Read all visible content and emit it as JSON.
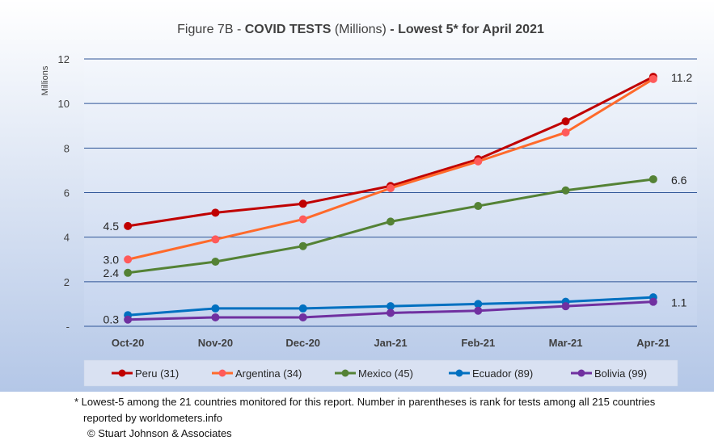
{
  "chart_data": {
    "type": "line",
    "title": {
      "prefix": "Figure 7B - ",
      "bold1": "COVID TESTS",
      "middle": " (Millions) ",
      "bold2": "- Lowest 5* for April 2021"
    },
    "ylabel": "Millions",
    "xlabel": "",
    "categories": [
      "Oct-20",
      "Nov-20",
      "Dec-20",
      "Jan-21",
      "Feb-21",
      "Mar-21",
      "Apr-21"
    ],
    "ylim": [
      0,
      12
    ],
    "yticks": [
      {
        "value": 0,
        "label": "-"
      },
      {
        "value": 2,
        "label": "2"
      },
      {
        "value": 4,
        "label": "4"
      },
      {
        "value": 6,
        "label": "6"
      },
      {
        "value": 8,
        "label": "8"
      },
      {
        "value": 10,
        "label": "10"
      },
      {
        "value": 12,
        "label": "12"
      }
    ],
    "grid": true,
    "legend_position": "bottom",
    "series": [
      {
        "name": "Peru (31)",
        "color": "#C00000",
        "marker": "#C00000",
        "values": [
          4.5,
          5.1,
          5.5,
          6.3,
          7.5,
          9.2,
          11.2
        ]
      },
      {
        "name": "Argentina (34)",
        "color": "#FF6A2B",
        "marker": "#FF5A5A",
        "values": [
          3.0,
          3.9,
          4.8,
          6.2,
          7.4,
          8.7,
          11.1
        ]
      },
      {
        "name": "Mexico (45)",
        "color": "#548235",
        "marker": "#548235",
        "values": [
          2.4,
          2.9,
          3.6,
          4.7,
          5.4,
          6.1,
          6.6
        ]
      },
      {
        "name": "Ecuador (89)",
        "color": "#0070C0",
        "marker": "#0070C0",
        "values": [
          0.5,
          0.8,
          0.8,
          0.9,
          1.0,
          1.1,
          1.3
        ]
      },
      {
        "name": "Bolivia (99)",
        "color": "#7030A0",
        "marker": "#7030A0",
        "values": [
          0.3,
          0.4,
          0.4,
          0.6,
          0.7,
          0.9,
          1.1
        ]
      }
    ],
    "start_labels": [
      {
        "series": 0,
        "text": "4.5"
      },
      {
        "series": 1,
        "text": "3.0"
      },
      {
        "series": 2,
        "text": "2.4"
      },
      {
        "series": 4,
        "text": "0.3"
      }
    ],
    "end_labels": [
      {
        "series": 0,
        "text": "11.2"
      },
      {
        "series": 2,
        "text": "6.6"
      },
      {
        "series": 4,
        "text": "1.1"
      }
    ]
  },
  "footnote": {
    "line1": "* Lowest-5 among the 21 countries monitored for this report. Number in parentheses is rank for tests among all 215 countries",
    "line2": "reported by worldometers.info",
    "copyright": "© Stuart Johnson & Associates"
  }
}
